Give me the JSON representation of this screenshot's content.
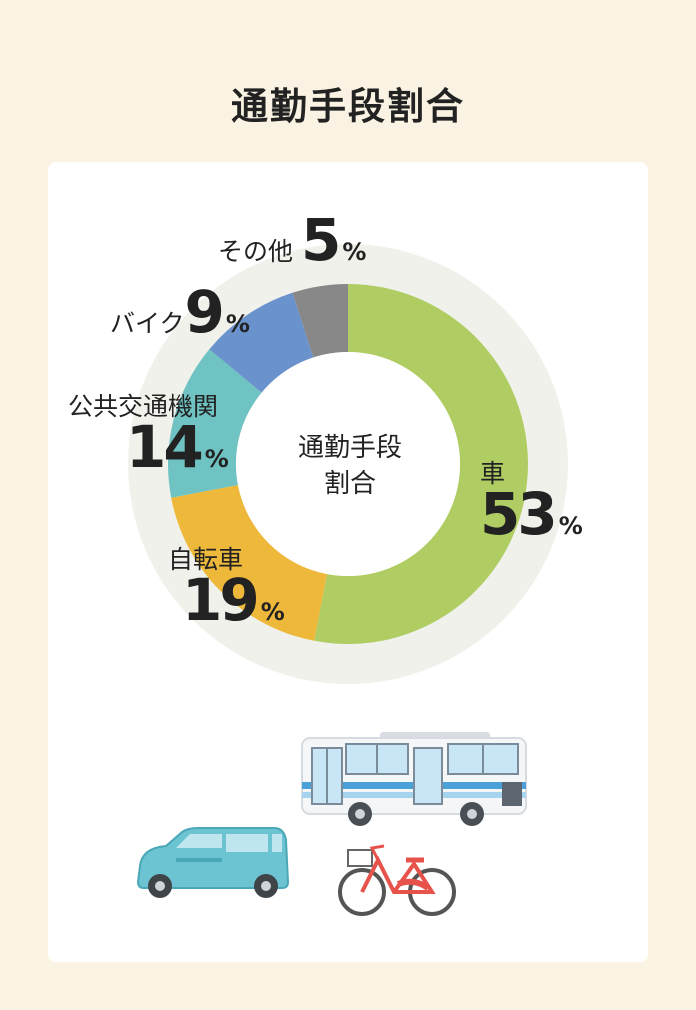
{
  "title": "通勤手段割合",
  "center_label_line1": "通勤手段",
  "center_label_line2": "割合",
  "percent_sign": "%",
  "chart_data": {
    "type": "pie",
    "variant": "donut",
    "title": "通勤手段割合",
    "categories": [
      "車",
      "自転車",
      "公共交通機関",
      "バイク",
      "その他"
    ],
    "values": [
      53,
      19,
      14,
      9,
      5
    ],
    "unit": "%",
    "colors": [
      "#afcd63",
      "#eeb93b",
      "#6fc3c2",
      "#6a92cc",
      "#888888"
    ],
    "track_color": "#f1f1ec"
  },
  "illustrations": [
    "bus-icon",
    "car-icon",
    "bicycle-icon"
  ]
}
